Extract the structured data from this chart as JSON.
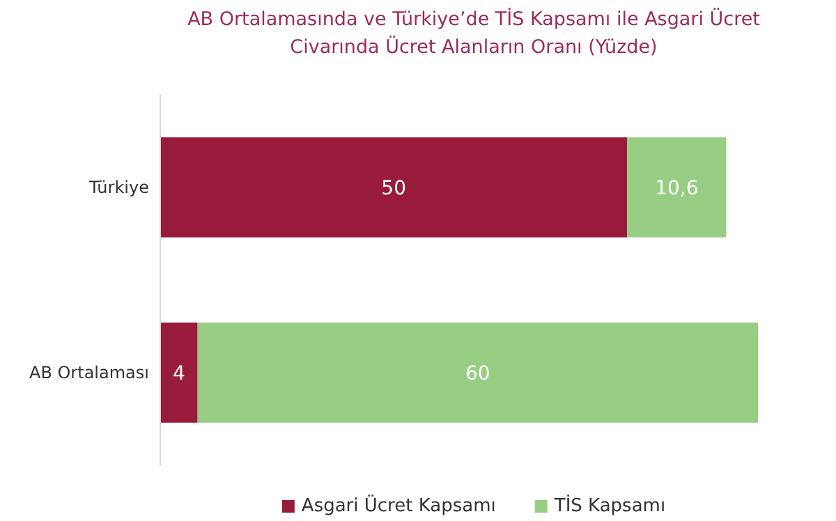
{
  "chart_data": {
    "type": "bar",
    "orientation": "horizontal",
    "stacked": true,
    "title": "AB Ortalamasında ve Türkiye’de TİS Kapsamı ile Asgari Ücret Civarında Ücret Alanların Oranı (Yüzde)",
    "categories": [
      "Türkiye",
      "AB Ortalaması"
    ],
    "legend": "bottom",
    "series": [
      {
        "name": "Asgari Ücret Kapsamı",
        "color": "#981b3b",
        "values": [
          50,
          4
        ],
        "value_labels": [
          "50",
          "4"
        ]
      },
      {
        "name": "TİS Kapsamı",
        "color": "#98cd84",
        "values": [
          10.6,
          60
        ],
        "value_labels": [
          "10,6",
          "60"
        ]
      }
    ]
  }
}
